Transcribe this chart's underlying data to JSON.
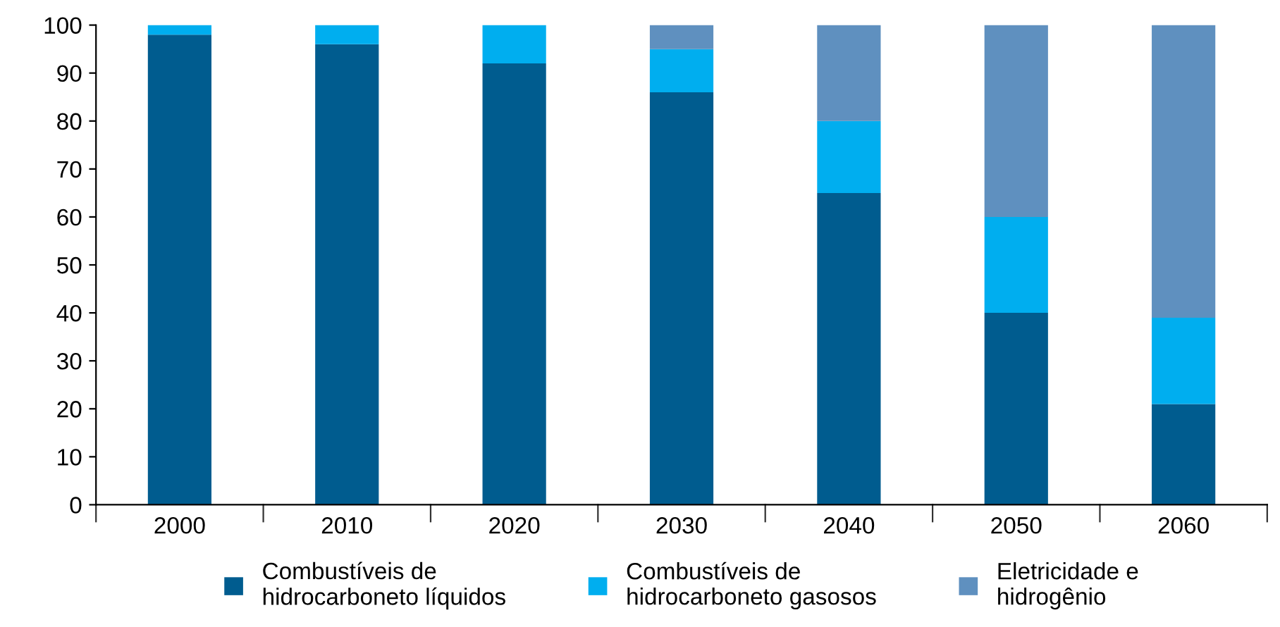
{
  "chart_data": {
    "type": "bar",
    "stacked": true,
    "categories": [
      "2000",
      "2010",
      "2020",
      "2030",
      "2040",
      "2050",
      "2060"
    ],
    "series": [
      {
        "name": "Combustíveis de\nhidrocarboneto líquidos",
        "color": "#005c8f",
        "values": [
          98,
          96,
          92,
          86,
          65,
          40,
          21
        ]
      },
      {
        "name": "Combustíveis de\nhidrocarboneto gasosos",
        "color": "#00aeef",
        "values": [
          2,
          4,
          8,
          9,
          15,
          20,
          18
        ]
      },
      {
        "name": "Eletricidade e\nhidrogênio",
        "color": "#5f90bf",
        "values": [
          0,
          0,
          0,
          5,
          20,
          40,
          61
        ]
      }
    ],
    "ylim": [
      0,
      100
    ],
    "yticks": [
      0,
      10,
      20,
      30,
      40,
      50,
      60,
      70,
      80,
      90,
      100
    ],
    "grid": false,
    "legend": "bottom"
  }
}
